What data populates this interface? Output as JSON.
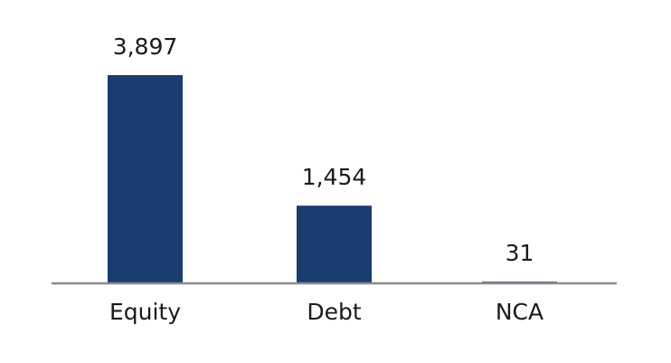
{
  "chart_data": {
    "type": "bar",
    "categories": [
      "Equity",
      "Debt",
      "NCA"
    ],
    "values": [
      3897,
      1454,
      31
    ],
    "value_labels": [
      "3,897",
      "1,454",
      "31"
    ],
    "color": "#1b3c6f"
  }
}
